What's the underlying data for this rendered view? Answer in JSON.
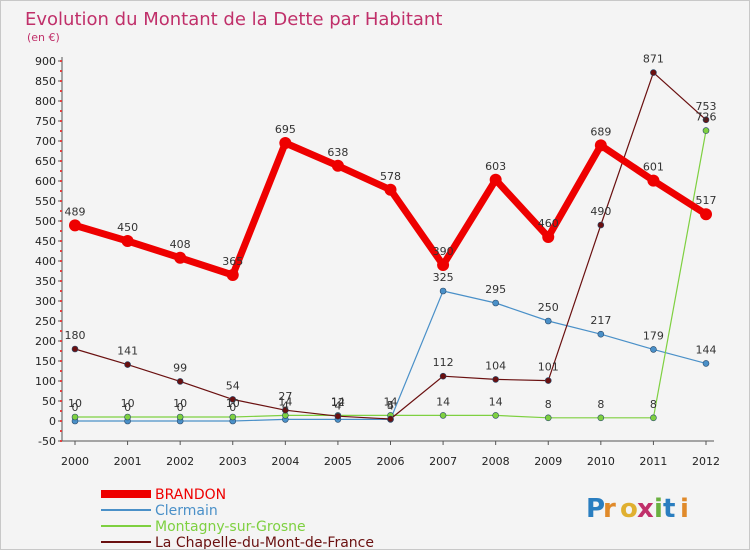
{
  "chart_data": {
    "type": "line",
    "title": "Evolution du Montant de la Dette par Habitant",
    "subtitle": "(en €)",
    "x": [
      "2000",
      "2001",
      "2002",
      "2003",
      "2004",
      "2005",
      "2006",
      "2007",
      "2008",
      "2009",
      "2010",
      "2011",
      "2012"
    ],
    "ylim": [
      -50,
      900
    ],
    "yticks": [
      -50,
      0,
      50,
      100,
      150,
      200,
      250,
      300,
      350,
      400,
      450,
      500,
      550,
      600,
      650,
      700,
      750,
      800,
      850,
      900
    ],
    "grid": false,
    "legend_position": "bottom-left",
    "series": [
      {
        "name": "BRANDON",
        "color": "#ee0000",
        "values": [
          489,
          450,
          408,
          365,
          695,
          638,
          578,
          390,
          603,
          460,
          689,
          601,
          517
        ]
      },
      {
        "name": "Clermain",
        "color": "#4a90c8",
        "values": [
          0,
          0,
          0,
          0,
          4,
          4,
          4,
          325,
          295,
          250,
          217,
          179,
          144
        ]
      },
      {
        "name": "Montagny-sur-Grosne",
        "color": "#7ed040",
        "values": [
          10,
          10,
          10,
          10,
          14,
          14,
          14,
          14,
          14,
          8,
          8,
          8,
          726
        ]
      },
      {
        "name": "La Chapelle-du-Mont-de-France",
        "color": "#6a1010",
        "values": [
          180,
          141,
          99,
          54,
          27,
          12,
          5,
          112,
          104,
          101,
          490,
          871,
          753
        ]
      }
    ]
  },
  "watermark": "Proxiti"
}
